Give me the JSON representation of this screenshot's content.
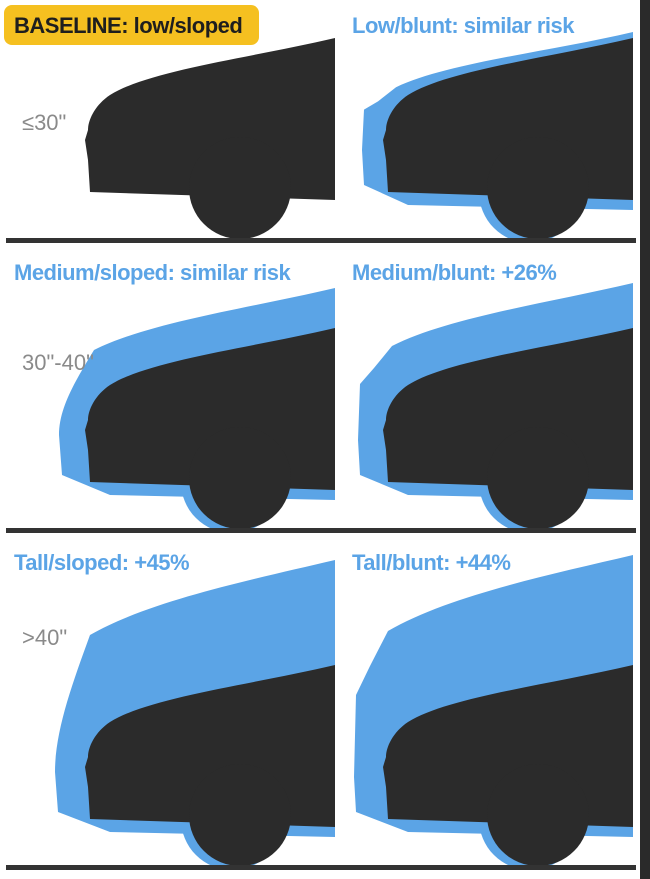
{
  "rows": [
    {
      "height_label": "≤30\"",
      "panels": [
        {
          "title": "BASELINE: low/sloped"
        },
        {
          "title": "Low/blunt: similar risk"
        }
      ]
    },
    {
      "height_label": "30\"-40\"",
      "panels": [
        {
          "title": "Medium/sloped: similar risk"
        },
        {
          "title": "Medium/blunt: +26%"
        }
      ]
    },
    {
      "height_label": ">40\"",
      "panels": [
        {
          "title": "Tall/sloped: +45%"
        },
        {
          "title": "Tall/blunt: +44%"
        }
      ]
    }
  ]
}
